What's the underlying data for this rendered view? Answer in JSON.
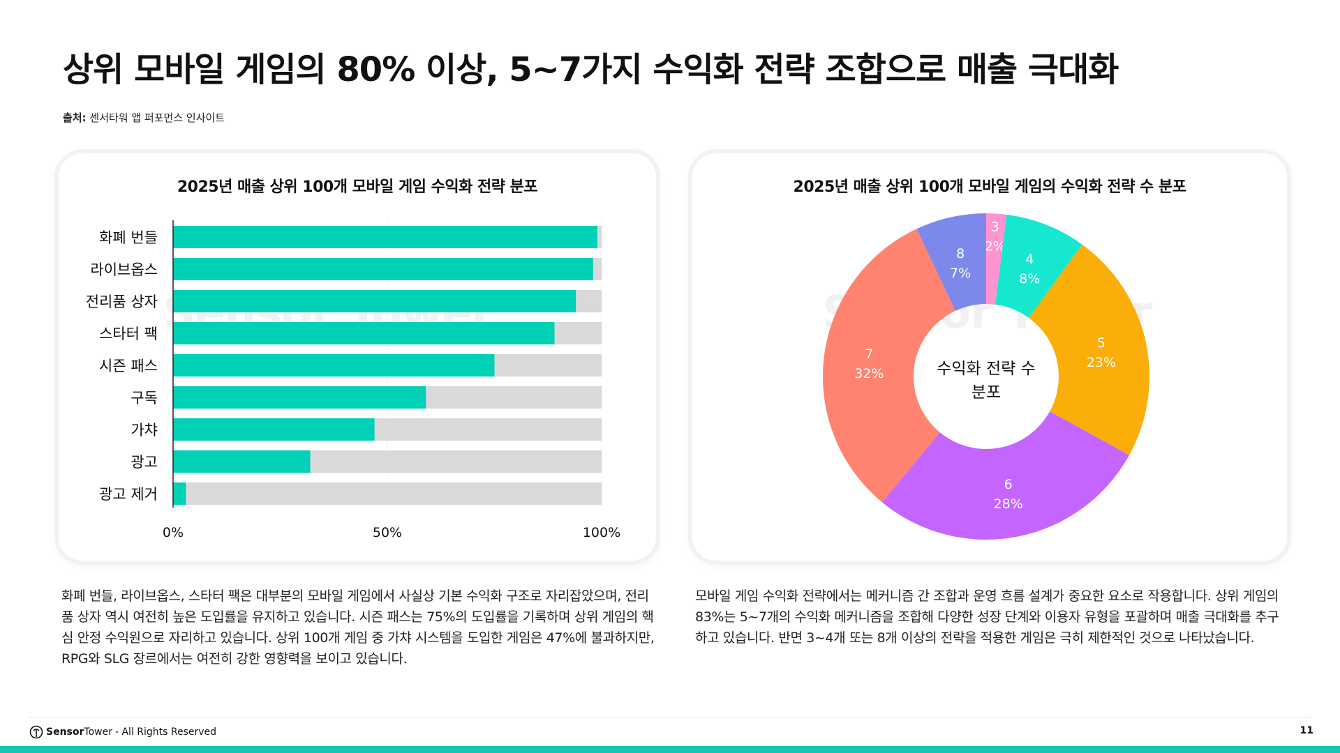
{
  "title": "상위 모바일 게임의 80% 이상, 5~7가지 수익화 전략 조합으로 매출 극대화",
  "source": {
    "label": "출처:",
    "text": "센서타워 앱 퍼포먼스 인사이트"
  },
  "watermark": "Sensor Tower",
  "chart_data": [
    {
      "type": "bar",
      "orientation": "horizontal",
      "title": "2025년 매출 상위 100개 모바일 게임 수익화 전략 분포",
      "categories": [
        "화폐 번들",
        "라이브옵스",
        "전리품 상자",
        "스타터 팩",
        "시즌 패스",
        "구독",
        "가챠",
        "광고",
        "광고 제거"
      ],
      "values": [
        99,
        98,
        94,
        89,
        75,
        59,
        47,
        32,
        3
      ],
      "xlim": [
        0,
        100
      ],
      "tick_labels": [
        "0%",
        "50%",
        "100%"
      ],
      "bar_color": "#00d0b6",
      "track_color": "#d9d9d9"
    },
    {
      "type": "pie",
      "variant": "donut",
      "title": "2025년 매출 상위 100개 모바일 게임의 수익화 전략 수 분포",
      "center_label": [
        "수익화 전략 수",
        "분포"
      ],
      "slices": [
        {
          "label": "3",
          "value": 2,
          "pct": "2%",
          "color": "#ff94d1"
        },
        {
          "label": "4",
          "value": 8,
          "pct": "8%",
          "color": "#16e8cf"
        },
        {
          "label": "5",
          "value": 23,
          "pct": "23%",
          "color": "#fbad0a"
        },
        {
          "label": "6",
          "value": 28,
          "pct": "28%",
          "color": "#c465ff"
        },
        {
          "label": "7",
          "value": 32,
          "pct": "32%",
          "color": "#ff8370"
        },
        {
          "label": "8",
          "value": 7,
          "pct": "7%",
          "color": "#7d89ea"
        }
      ]
    }
  ],
  "desc_left": "화폐 번들, 라이브옵스, 스타터 팩은 대부분의 모바일 게임에서 사실상 기본 수익화 구조로 자리잡았으며, 전리품 상자 역시 여전히 높은 도입률을 유지하고 있습니다. 시즌 패스는 75%의 도입률을 기록하며 상위 게임의 핵심 안정 수익원으로 자리하고 있습니다. 상위 100개 게임 중 가챠 시스템을 도입한 게임은 47%에 불과하지만, RPG와 SLG 장르에서는 여전히 강한 영향력을 보이고 있습니다.",
  "desc_right": "모바일 게임 수익화 전략에서는 메커니즘 간 조합과 운영 흐름 설계가 중요한 요소로 작용합니다. 상위 게임의 83%는 5~7개의 수익화 메커니즘을 조합해 다양한 성장 단계와 이용자 유형을 포괄하며 매출 극대화를 추구하고 있습니다. 반면 3~4개 또는 8개 이상의 전략을 적용한 게임은 극히 제한적인 것으로 나타났습니다.",
  "footer": {
    "brand_a": "Sensor",
    "brand_b": "Tower",
    "rights": "- All Rights Reserved",
    "page": "11"
  },
  "colors": {
    "accent": "#17c7b2"
  }
}
